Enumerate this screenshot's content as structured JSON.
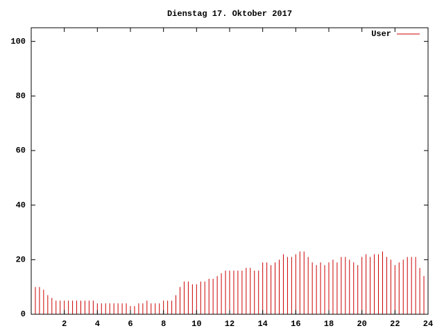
{
  "chart_data": {
    "type": "impulse",
    "title": "Dienstag 17. Oktober 2017",
    "x": [
      0,
      0.25,
      0.5,
      0.75,
      1,
      1.25,
      1.5,
      1.75,
      2,
      2.25,
      2.5,
      2.75,
      3,
      3.25,
      3.5,
      3.75,
      4,
      4.25,
      4.5,
      4.75,
      5,
      5.25,
      5.5,
      5.75,
      6,
      6.25,
      6.5,
      6.75,
      7,
      7.25,
      7.5,
      7.75,
      8,
      8.25,
      8.5,
      8.75,
      9,
      9.25,
      9.5,
      9.75,
      10,
      10.25,
      10.5,
      10.75,
      11,
      11.25,
      11.5,
      11.75,
      12,
      12.25,
      12.5,
      12.75,
      13,
      13.25,
      13.5,
      13.75,
      14,
      14.25,
      14.5,
      14.75,
      15,
      15.25,
      15.5,
      15.75,
      16,
      16.25,
      16.5,
      16.75,
      17,
      17.25,
      17.5,
      17.75,
      18,
      18.25,
      18.5,
      18.75,
      19,
      19.25,
      19.5,
      19.75,
      20,
      20.25,
      20.5,
      20.75,
      21,
      21.25,
      21.5,
      21.75,
      22,
      22.25,
      22.5,
      22.75,
      23,
      23.25,
      23.5,
      23.75,
      24
    ],
    "series": [
      {
        "name": "User",
        "color": "#cc0000",
        "values": [
          9,
          10,
          10,
          9,
          7,
          6,
          5,
          5,
          5,
          5,
          5,
          5,
          5,
          5,
          5,
          5,
          4,
          4,
          4,
          4,
          4,
          4,
          4,
          4,
          3,
          3,
          4,
          4,
          5,
          4,
          4,
          4,
          5,
          5,
          5,
          7,
          10,
          12,
          12,
          11,
          11,
          12,
          12,
          13,
          13,
          14,
          15,
          16,
          16,
          16,
          16,
          16,
          17,
          17,
          16,
          16,
          19,
          19,
          18,
          19,
          20,
          22,
          21,
          21,
          22,
          23,
          23,
          21,
          19,
          18,
          19,
          18,
          19,
          20,
          19,
          21,
          21,
          20,
          19,
          18,
          21,
          22,
          21,
          22,
          22,
          23,
          21,
          20,
          18,
          19,
          20,
          21,
          21,
          21,
          17,
          14,
          11
        ]
      }
    ],
    "xlim": [
      0,
      24
    ],
    "xticks": [
      2,
      4,
      6,
      8,
      10,
      12,
      14,
      16,
      18,
      20,
      22,
      24
    ],
    "ylim": [
      0,
      105
    ],
    "yticks": [
      0,
      20,
      40,
      60,
      80,
      100
    ],
    "grid": false,
    "legend": "top-right"
  }
}
